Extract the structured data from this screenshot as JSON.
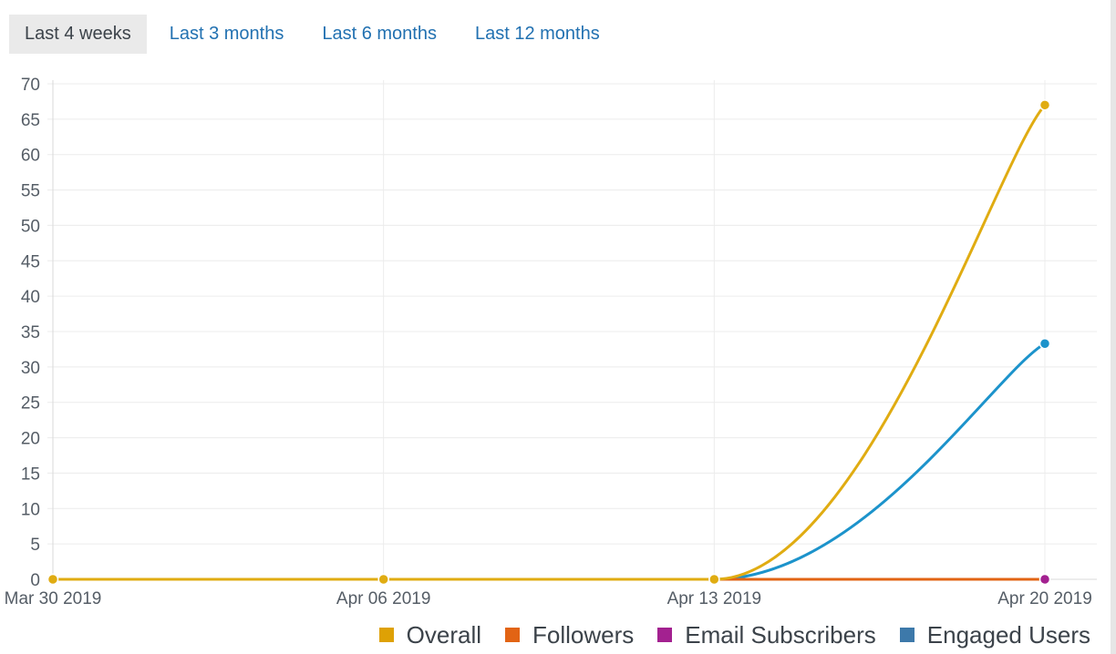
{
  "tabs": [
    {
      "label": "Last 4 weeks",
      "active": true
    },
    {
      "label": "Last 3 months",
      "active": false
    },
    {
      "label": "Last 6 months",
      "active": false
    },
    {
      "label": "Last 12 months",
      "active": false
    }
  ],
  "chart_data": {
    "type": "line",
    "x": [
      "Mar 30 2019",
      "Apr 06 2019",
      "Apr 13 2019",
      "Apr 20 2019"
    ],
    "ylim": [
      0,
      70
    ],
    "yticks": [
      0,
      5,
      10,
      15,
      20,
      25,
      30,
      35,
      40,
      45,
      50,
      55,
      60,
      65,
      70
    ],
    "grid": true,
    "legend_position": "bottom-right",
    "series": [
      {
        "name": "Overall",
        "color": "#dea105",
        "values": [
          0,
          0,
          0,
          67
        ],
        "line_color": "#e0ac12"
      },
      {
        "name": "Followers",
        "color": "#e26414",
        "values": [
          0,
          0,
          0,
          0
        ]
      },
      {
        "name": "Email Subscribers",
        "color": "#a32190",
        "values": [
          0,
          0,
          0,
          0
        ]
      },
      {
        "name": "Engaged Users",
        "color": "#3d79aa",
        "values": [
          0,
          0,
          0,
          33.3
        ],
        "line_color": "#1c93cb"
      }
    ]
  }
}
